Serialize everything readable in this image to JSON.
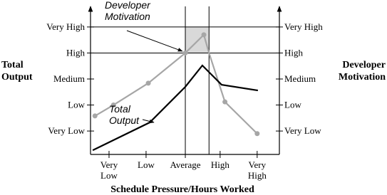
{
  "chart_data": {
    "type": "line",
    "x_axis_label": "Schedule Pressure/Hours Worked",
    "y_axis_label": [
      "Total",
      "Output"
    ],
    "y2_axis_label": [
      "Developer",
      "Motivation"
    ],
    "xlim": [
      0.5,
      5.6
    ],
    "xticks": [
      {
        "value": 1,
        "label": "Very Low"
      },
      {
        "value": 2,
        "label": "Low"
      },
      {
        "value": 3.06,
        "label": "Average"
      },
      {
        "value": 4,
        "label": "High"
      },
      {
        "value": 5,
        "label": "Very High"
      }
    ],
    "ylim": [
      0.1,
      5.9
    ],
    "yticks": [
      {
        "value": 1,
        "label": "Very Low"
      },
      {
        "value": 2,
        "label": "Low"
      },
      {
        "value": 3,
        "label": "Medium"
      },
      {
        "value": 4,
        "label": "High"
      },
      {
        "value": 5,
        "label": "Very High"
      }
    ],
    "y2lim": [
      0.1,
      5.9
    ],
    "y2ticks": [
      {
        "value": 1,
        "label": "Very Low"
      },
      {
        "value": 2,
        "label": "Low"
      },
      {
        "value": 3,
        "label": "Medium"
      },
      {
        "value": 4,
        "label": "High"
      },
      {
        "value": 5,
        "label": "Very High"
      }
    ],
    "hlines": [
      4,
      5
    ],
    "vlines": [
      3.06,
      3.7
    ],
    "highlight": {
      "x": [
        3.06,
        3.7
      ],
      "y": [
        4,
        5
      ],
      "color": "#d9d9d9"
    },
    "series": [
      {
        "name": [
          "Developer",
          "Motivation"
        ],
        "color": "#a6a6a6",
        "axis": "y2",
        "markers": true,
        "x": [
          0.62,
          1.12,
          2.06,
          3.06,
          3.56,
          3.7,
          4.13,
          5.0
        ],
        "values": [
          1.58,
          2.0,
          2.84,
          4.0,
          4.7,
          4.0,
          2.12,
          0.9
        ],
        "marker_mask": [
          true,
          true,
          true,
          true,
          true,
          false,
          true,
          true
        ]
      },
      {
        "name": [
          "Total",
          "Output"
        ],
        "color": "#000000",
        "axis": "y",
        "markers": false,
        "x": [
          0.56,
          2.1,
          3.06,
          3.52,
          4.04,
          5.02
        ],
        "values": [
          0.26,
          1.33,
          2.7,
          3.52,
          2.78,
          2.56
        ]
      }
    ]
  }
}
